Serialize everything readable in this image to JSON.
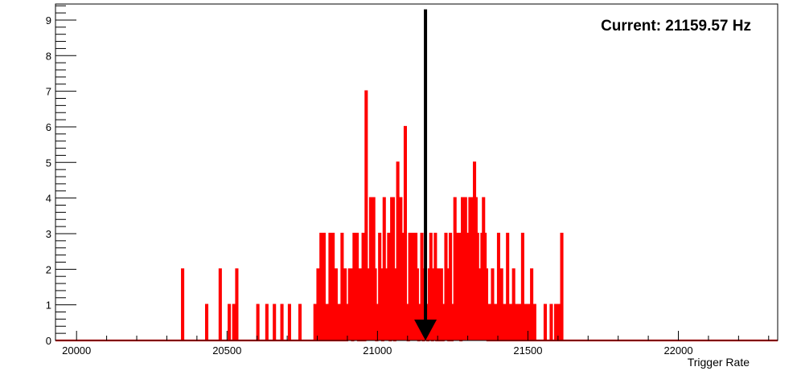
{
  "chart_data": {
    "type": "histogram",
    "xlabel": "Trigger Rate",
    "ylabel": "",
    "xlim": [
      19930,
      22330
    ],
    "ylim": [
      0,
      9.45
    ],
    "x_ticks": [
      20000,
      20500,
      21000,
      21500,
      22000
    ],
    "y_ticks": [
      0,
      1,
      2,
      3,
      4,
      5,
      6,
      7,
      8,
      9
    ],
    "bin_width": 5,
    "series": [
      {
        "color": "#ff0000",
        "bins": [
          [
            20350,
            2
          ],
          [
            20430,
            1
          ],
          [
            20475,
            2
          ],
          [
            20505,
            1
          ],
          [
            20520,
            1
          ],
          [
            20530,
            2
          ],
          [
            20600,
            1
          ],
          [
            20630,
            1
          ],
          [
            20655,
            1
          ],
          [
            20680,
            1
          ],
          [
            20705,
            1
          ],
          [
            20740,
            1
          ],
          [
            20790,
            1
          ],
          [
            20800,
            2
          ],
          [
            20810,
            3
          ],
          [
            20820,
            3
          ],
          [
            20830,
            1
          ],
          [
            20840,
            3
          ],
          [
            20850,
            3
          ],
          [
            20860,
            2
          ],
          [
            20870,
            1
          ],
          [
            20880,
            3
          ],
          [
            20890,
            2
          ],
          [
            20900,
            1
          ],
          [
            20905,
            2
          ],
          [
            20910,
            2
          ],
          [
            20920,
            3
          ],
          [
            20925,
            1
          ],
          [
            20930,
            3
          ],
          [
            20940,
            2
          ],
          [
            20950,
            3
          ],
          [
            20960,
            7
          ],
          [
            20965,
            2
          ],
          [
            20970,
            1
          ],
          [
            20975,
            4
          ],
          [
            20980,
            3
          ],
          [
            20985,
            4
          ],
          [
            20990,
            2
          ],
          [
            21000,
            1
          ],
          [
            21005,
            3
          ],
          [
            21010,
            2
          ],
          [
            21020,
            4
          ],
          [
            21025,
            2
          ],
          [
            21030,
            1
          ],
          [
            21035,
            3
          ],
          [
            21045,
            4
          ],
          [
            21050,
            4
          ],
          [
            21060,
            2
          ],
          [
            21065,
            5
          ],
          [
            21070,
            3
          ],
          [
            21075,
            4
          ],
          [
            21080,
            1
          ],
          [
            21085,
            3
          ],
          [
            21090,
            6
          ],
          [
            21095,
            1
          ],
          [
            21105,
            3
          ],
          [
            21110,
            2
          ],
          [
            21115,
            3
          ],
          [
            21120,
            1
          ],
          [
            21125,
            3
          ],
          [
            21130,
            2
          ],
          [
            21140,
            1
          ],
          [
            21145,
            3
          ],
          [
            21155,
            2
          ],
          [
            21160,
            1
          ],
          [
            21170,
            2
          ],
          [
            21175,
            3
          ],
          [
            21185,
            2
          ],
          [
            21190,
            3
          ],
          [
            21200,
            2
          ],
          [
            21210,
            2
          ],
          [
            21220,
            1
          ],
          [
            21225,
            3
          ],
          [
            21230,
            2
          ],
          [
            21240,
            3
          ],
          [
            21250,
            1
          ],
          [
            21255,
            4
          ],
          [
            21260,
            2
          ],
          [
            21265,
            3
          ],
          [
            21270,
            3
          ],
          [
            21280,
            4
          ],
          [
            21285,
            3
          ],
          [
            21290,
            4
          ],
          [
            21295,
            2
          ],
          [
            21300,
            3
          ],
          [
            21305,
            4
          ],
          [
            21310,
            4
          ],
          [
            21315,
            3
          ],
          [
            21320,
            5
          ],
          [
            21325,
            4
          ],
          [
            21330,
            3
          ],
          [
            21335,
            1
          ],
          [
            21340,
            2
          ],
          [
            21345,
            3
          ],
          [
            21350,
            4
          ],
          [
            21355,
            3
          ],
          [
            21360,
            2
          ],
          [
            21370,
            1
          ],
          [
            21380,
            2
          ],
          [
            21390,
            1
          ],
          [
            21400,
            3
          ],
          [
            21410,
            2
          ],
          [
            21420,
            1
          ],
          [
            21430,
            3
          ],
          [
            21440,
            1
          ],
          [
            21450,
            2
          ],
          [
            21460,
            1
          ],
          [
            21470,
            1
          ],
          [
            21480,
            3
          ],
          [
            21490,
            1
          ],
          [
            21500,
            1
          ],
          [
            21510,
            2
          ],
          [
            21520,
            1
          ],
          [
            21555,
            1
          ],
          [
            21575,
            1
          ],
          [
            21590,
            1
          ],
          [
            21600,
            1
          ],
          [
            21610,
            3
          ]
        ]
      }
    ],
    "annotations": [
      {
        "text": "Current: 21159.57 Hz",
        "x": 21159.57,
        "y_from": 9.3,
        "y_to": 0
      }
    ]
  }
}
